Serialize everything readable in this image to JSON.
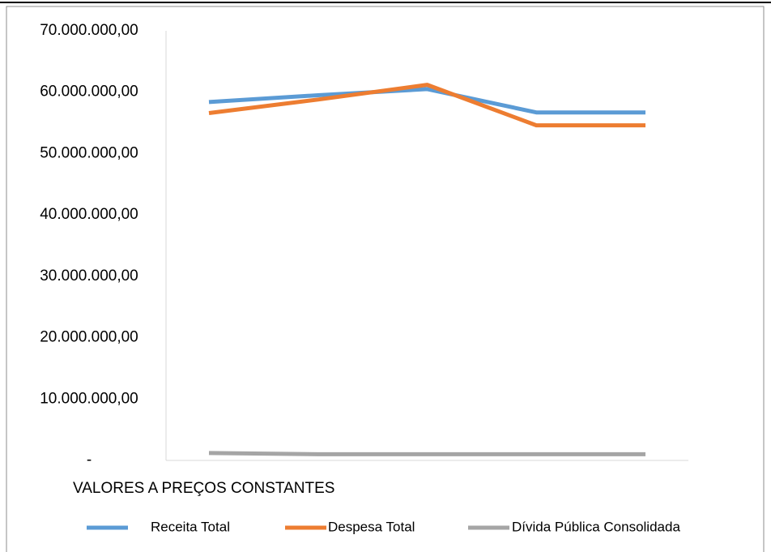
{
  "chart_data": {
    "type": "line",
    "subtitle": "VALORES A PREÇOS CONSTANTES",
    "categories": [
      null,
      null,
      null,
      null,
      null
    ],
    "series": [
      {
        "name": "Receita Total",
        "color": "#5b9bd5",
        "values": [
          58400000,
          59500000,
          60500000,
          56700000,
          56700000
        ]
      },
      {
        "name": "Despesa Total",
        "color": "#ed7d31",
        "values": [
          56600000,
          58800000,
          61200000,
          54600000,
          54600000
        ]
      },
      {
        "name": "Dívida Pública Consolidada",
        "color": "#a5a5a5",
        "values": [
          1200000,
          1000000,
          1000000,
          1000000,
          1000000
        ]
      }
    ],
    "ylim": [
      0,
      70000000
    ],
    "yticks": [
      {
        "value": 0,
        "label": "-"
      },
      {
        "value": 10000000,
        "label": "10.000.000,00"
      },
      {
        "value": 20000000,
        "label": "20.000.000,00"
      },
      {
        "value": 30000000,
        "label": "30.000.000,00"
      },
      {
        "value": 40000000,
        "label": "40.000.000,00"
      },
      {
        "value": 50000000,
        "label": "50.000.000,00"
      },
      {
        "value": 60000000,
        "label": "60.000.000,00"
      },
      {
        "value": 70000000,
        "label": "70.000.000,00"
      }
    ],
    "grid": false,
    "legend": "bottom"
  }
}
